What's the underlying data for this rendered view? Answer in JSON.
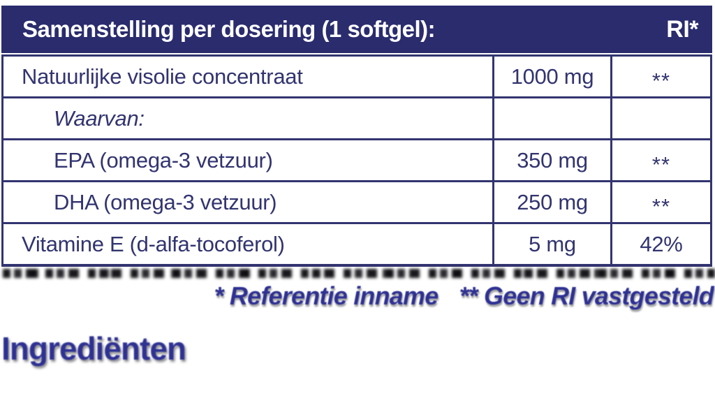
{
  "colors": {
    "header_bg": "#2a2c6e",
    "table_ink": "#323470",
    "accent_indigo": "#2e3192"
  },
  "table": {
    "header": {
      "title": "Samenstelling per dosering (1 softgel):",
      "ri": "RI*"
    },
    "rows": [
      {
        "name": "Natuurlijke visolie concentraat",
        "amount": "1000 mg",
        "ri": "**"
      },
      {
        "name": "Waarvan:",
        "amount": "",
        "ri": ""
      },
      {
        "name": "EPA (omega-3 vetzuur)",
        "amount": "350 mg",
        "ri": "**"
      },
      {
        "name": "DHA (omega-3 vetzuur)",
        "amount": "250 mg",
        "ri": "**"
      },
      {
        "name": "Vitamine E (d-alfa-tocoferol)",
        "amount": "5 mg",
        "ri": "42%"
      }
    ]
  },
  "footnotes": {
    "reference": "* Referentie inname",
    "no_ri": "** Geen RI vastgesteld"
  },
  "section_heading": "Ingrediënten"
}
